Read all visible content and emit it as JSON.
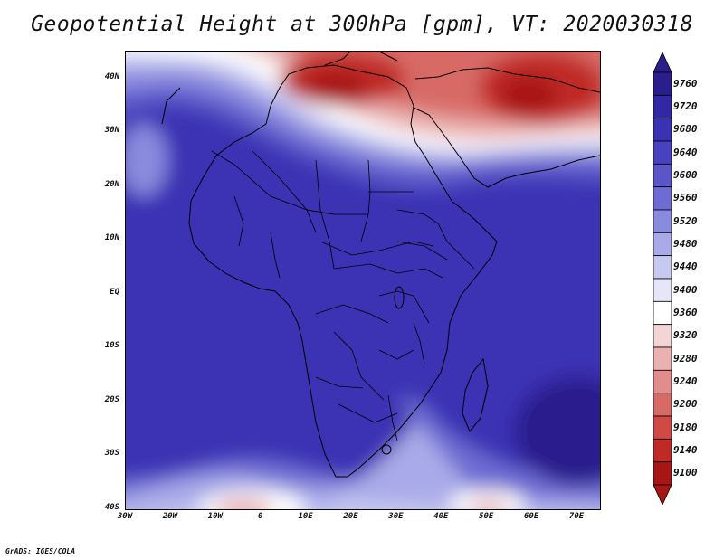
{
  "title": "Geopotential Height at 300hPa [gpm], VT: 2020030318",
  "credit": "GrADS: IGES/COLA",
  "map": {
    "lon_range": [
      -30,
      75
    ],
    "lat_range": [
      -40,
      45
    ],
    "lat_ticks": [
      {
        "value": 40,
        "label": "40N"
      },
      {
        "value": 30,
        "label": "30N"
      },
      {
        "value": 20,
        "label": "20N"
      },
      {
        "value": 10,
        "label": "10N"
      },
      {
        "value": 0,
        "label": "EQ"
      },
      {
        "value": -10,
        "label": "10S"
      },
      {
        "value": -20,
        "label": "20S"
      },
      {
        "value": -30,
        "label": "30S"
      },
      {
        "value": -40,
        "label": "40S"
      }
    ],
    "lon_ticks": [
      {
        "value": -30,
        "label": "30W"
      },
      {
        "value": -20,
        "label": "20W"
      },
      {
        "value": -10,
        "label": "10W"
      },
      {
        "value": 0,
        "label": "0"
      },
      {
        "value": 10,
        "label": "10E"
      },
      {
        "value": 20,
        "label": "20E"
      },
      {
        "value": 30,
        "label": "30E"
      },
      {
        "value": 40,
        "label": "40E"
      },
      {
        "value": 50,
        "label": "50E"
      },
      {
        "value": 60,
        "label": "60E"
      },
      {
        "value": 70,
        "label": "70E"
      }
    ]
  },
  "colorbar": {
    "levels": [
      "9760",
      "9720",
      "9680",
      "9640",
      "9600",
      "9560",
      "9520",
      "9480",
      "9440",
      "9400",
      "9360",
      "9320",
      "9280",
      "9240",
      "9200",
      "9180",
      "9140",
      "9100"
    ],
    "colors": [
      "#2a1e8c",
      "#3228a6",
      "#3a32b4",
      "#4841c0",
      "#5a56c8",
      "#6e6cd2",
      "#8a8ade",
      "#a9aae8",
      "#c8c9f1",
      "#e6e6f8",
      "#ffffff",
      "#f3d5d5",
      "#eab1b0",
      "#e08d8b",
      "#d86a66",
      "#d04a45",
      "#c02a26",
      "#a81614"
    ]
  }
}
